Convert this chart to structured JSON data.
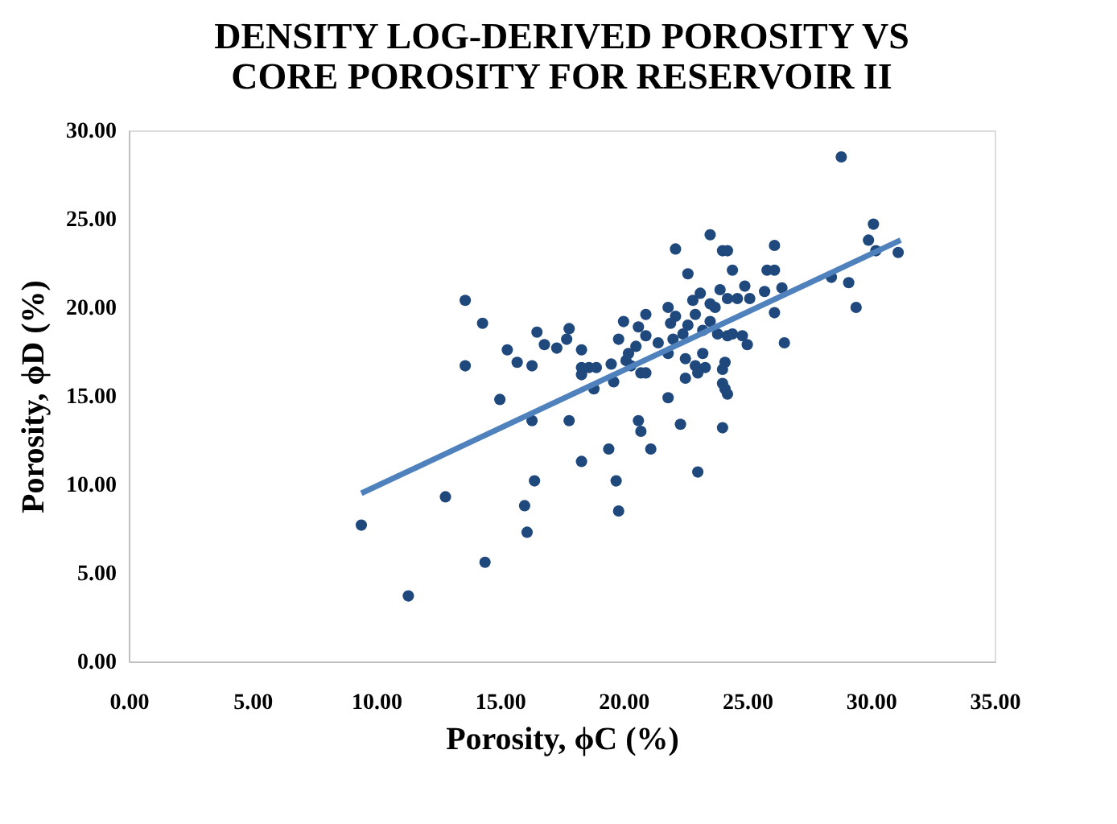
{
  "chart_data": {
    "type": "scatter",
    "title": [
      "DENSITY LOG-DERIVED POROSITY VS",
      "CORE POROSITY FOR RESERVOIR II"
    ],
    "xlabel": "Porosity, ϕC (%)",
    "ylabel": "Porosity, ϕD (%)",
    "xlim": [
      0,
      35
    ],
    "ylim": [
      0,
      30
    ],
    "xticks": [
      {
        "value": 0,
        "label": "0.00"
      },
      {
        "value": 5,
        "label": "5.00"
      },
      {
        "value": 10,
        "label": "10.00"
      },
      {
        "value": 15,
        "label": "15.00"
      },
      {
        "value": 20,
        "label": "20.00"
      },
      {
        "value": 25,
        "label": "25.00"
      },
      {
        "value": 30,
        "label": "30.00"
      },
      {
        "value": 35,
        "label": "35.00"
      }
    ],
    "yticks": [
      {
        "value": 0,
        "label": "0.00"
      },
      {
        "value": 5,
        "label": "5.00"
      },
      {
        "value": 10,
        "label": "10.00"
      },
      {
        "value": 15,
        "label": "15.00"
      },
      {
        "value": 20,
        "label": "20.00"
      },
      {
        "value": 25,
        "label": "25.00"
      },
      {
        "value": 30,
        "label": "30.00"
      }
    ],
    "grid": false,
    "series": [
      {
        "color": "#1f497d",
        "marker": "circle",
        "x": [
          28.8,
          30.1,
          29.9,
          30.2,
          31.1,
          28.4,
          29.1,
          29.4,
          23.5,
          22.1,
          24.0,
          24.2,
          26.1,
          22.6,
          24.4,
          25.8,
          26.1,
          24.9,
          25.7,
          26.4,
          26.1,
          26.5,
          25.0,
          24.8,
          24.2,
          24.6,
          25.1,
          23.9,
          23.1,
          22.8,
          23.5,
          23.7,
          22.9,
          23.5,
          21.8,
          22.1,
          21.9,
          22.6,
          22.4,
          22.0,
          23.2,
          23.8,
          24.2,
          24.4,
          21.8,
          21.4,
          20.9,
          20.9,
          20.6,
          20.0,
          19.8,
          20.5,
          20.2,
          20.1,
          19.5,
          20.3,
          20.7,
          20.9,
          19.6,
          22.5,
          22.9,
          23.2,
          23.3,
          22.5,
          23.0,
          24.1,
          24.0,
          24.0,
          24.1,
          24.2,
          21.8,
          24.0,
          22.3,
          20.6,
          20.7,
          21.1,
          19.4,
          23.0,
          19.7,
          19.8,
          18.3,
          17.8,
          16.3,
          16.4,
          16.0,
          16.1,
          14.4,
          12.8,
          11.3,
          9.4,
          15.0,
          13.6,
          13.6,
          14.3,
          15.3,
          15.7,
          16.3,
          16.5,
          16.8,
          17.3,
          17.7,
          17.8,
          18.3,
          18.3,
          18.3,
          18.6,
          18.9,
          18.8
        ],
        "values": [
          28.5,
          24.7,
          23.8,
          23.2,
          23.1,
          21.7,
          21.4,
          20.0,
          24.1,
          23.3,
          23.2,
          23.2,
          23.5,
          21.9,
          22.1,
          22.1,
          22.1,
          21.2,
          20.9,
          21.1,
          19.7,
          18.0,
          17.9,
          18.4,
          20.5,
          20.5,
          20.5,
          21.0,
          20.8,
          20.4,
          20.2,
          20.0,
          19.6,
          19.2,
          20.0,
          19.5,
          19.1,
          19.0,
          18.5,
          18.2,
          18.7,
          18.5,
          18.4,
          18.5,
          17.4,
          18.0,
          18.4,
          19.6,
          18.9,
          19.2,
          18.2,
          17.8,
          17.4,
          17.0,
          16.8,
          16.7,
          16.3,
          16.3,
          15.8,
          17.1,
          16.7,
          17.4,
          16.6,
          16.0,
          16.3,
          16.9,
          16.5,
          15.7,
          15.4,
          15.1,
          14.9,
          13.2,
          13.4,
          13.6,
          13.0,
          12.0,
          12.0,
          10.7,
          10.2,
          8.5,
          11.3,
          13.6,
          13.6,
          10.2,
          8.8,
          7.3,
          5.6,
          9.3,
          3.7,
          7.7,
          14.8,
          16.7,
          20.4,
          19.1,
          17.6,
          16.9,
          16.7,
          18.6,
          17.9,
          17.7,
          18.2,
          18.8,
          17.6,
          16.6,
          16.2,
          16.6,
          16.6,
          15.4
        ]
      },
      {
        "type": "line",
        "color": "#4f81bd",
        "marker": "none",
        "x": [
          9.4,
          31.2
        ],
        "values": [
          9.5,
          23.8
        ]
      }
    ]
  }
}
